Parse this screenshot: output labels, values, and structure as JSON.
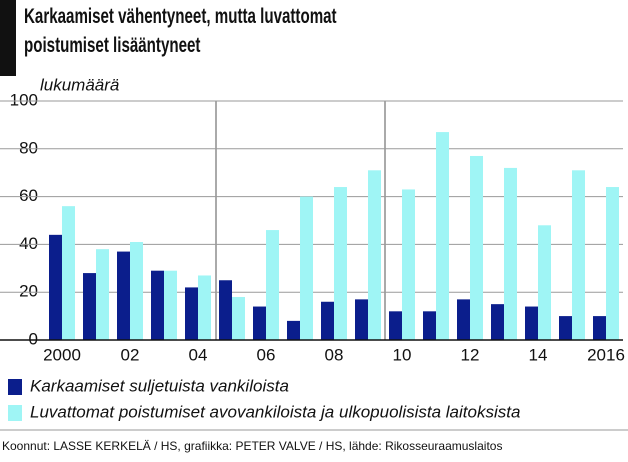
{
  "chart_data": {
    "type": "bar",
    "title": "Karkaamiset vähentyneet, mutta luvattomat poistumiset lisääntyneet",
    "y_label": "lukumäärä",
    "categories": [
      "2000",
      null,
      "02",
      null,
      "04",
      null,
      "06",
      null,
      "08",
      null,
      "10",
      null,
      "12",
      null,
      "14",
      null,
      "2016"
    ],
    "series": [
      {
        "name": "Karkaamiset suljetuista vankiloista",
        "color": "#0b1e8c",
        "values": [
          44,
          28,
          37,
          29,
          22,
          25,
          14,
          8,
          16,
          17,
          12,
          12,
          17,
          15,
          14,
          10,
          10
        ]
      },
      {
        "name": "Luvattomat poistumiset avovankiloista ja ulkopuolisista laitoksista",
        "color": "#9ff5f5",
        "values": [
          56,
          38,
          41,
          29,
          27,
          18,
          46,
          60,
          64,
          71,
          63,
          87,
          77,
          72,
          48,
          71,
          64
        ]
      }
    ],
    "ylim": [
      0,
      100
    ],
    "yticks": [
      0,
      20,
      40,
      60,
      80,
      100
    ],
    "grid": true,
    "source": "Koonnut: LASSE KERKELÄ / HS, grafiikka: PETER VALVE / HS, lähde: Rikosseuraamuslaitos"
  }
}
